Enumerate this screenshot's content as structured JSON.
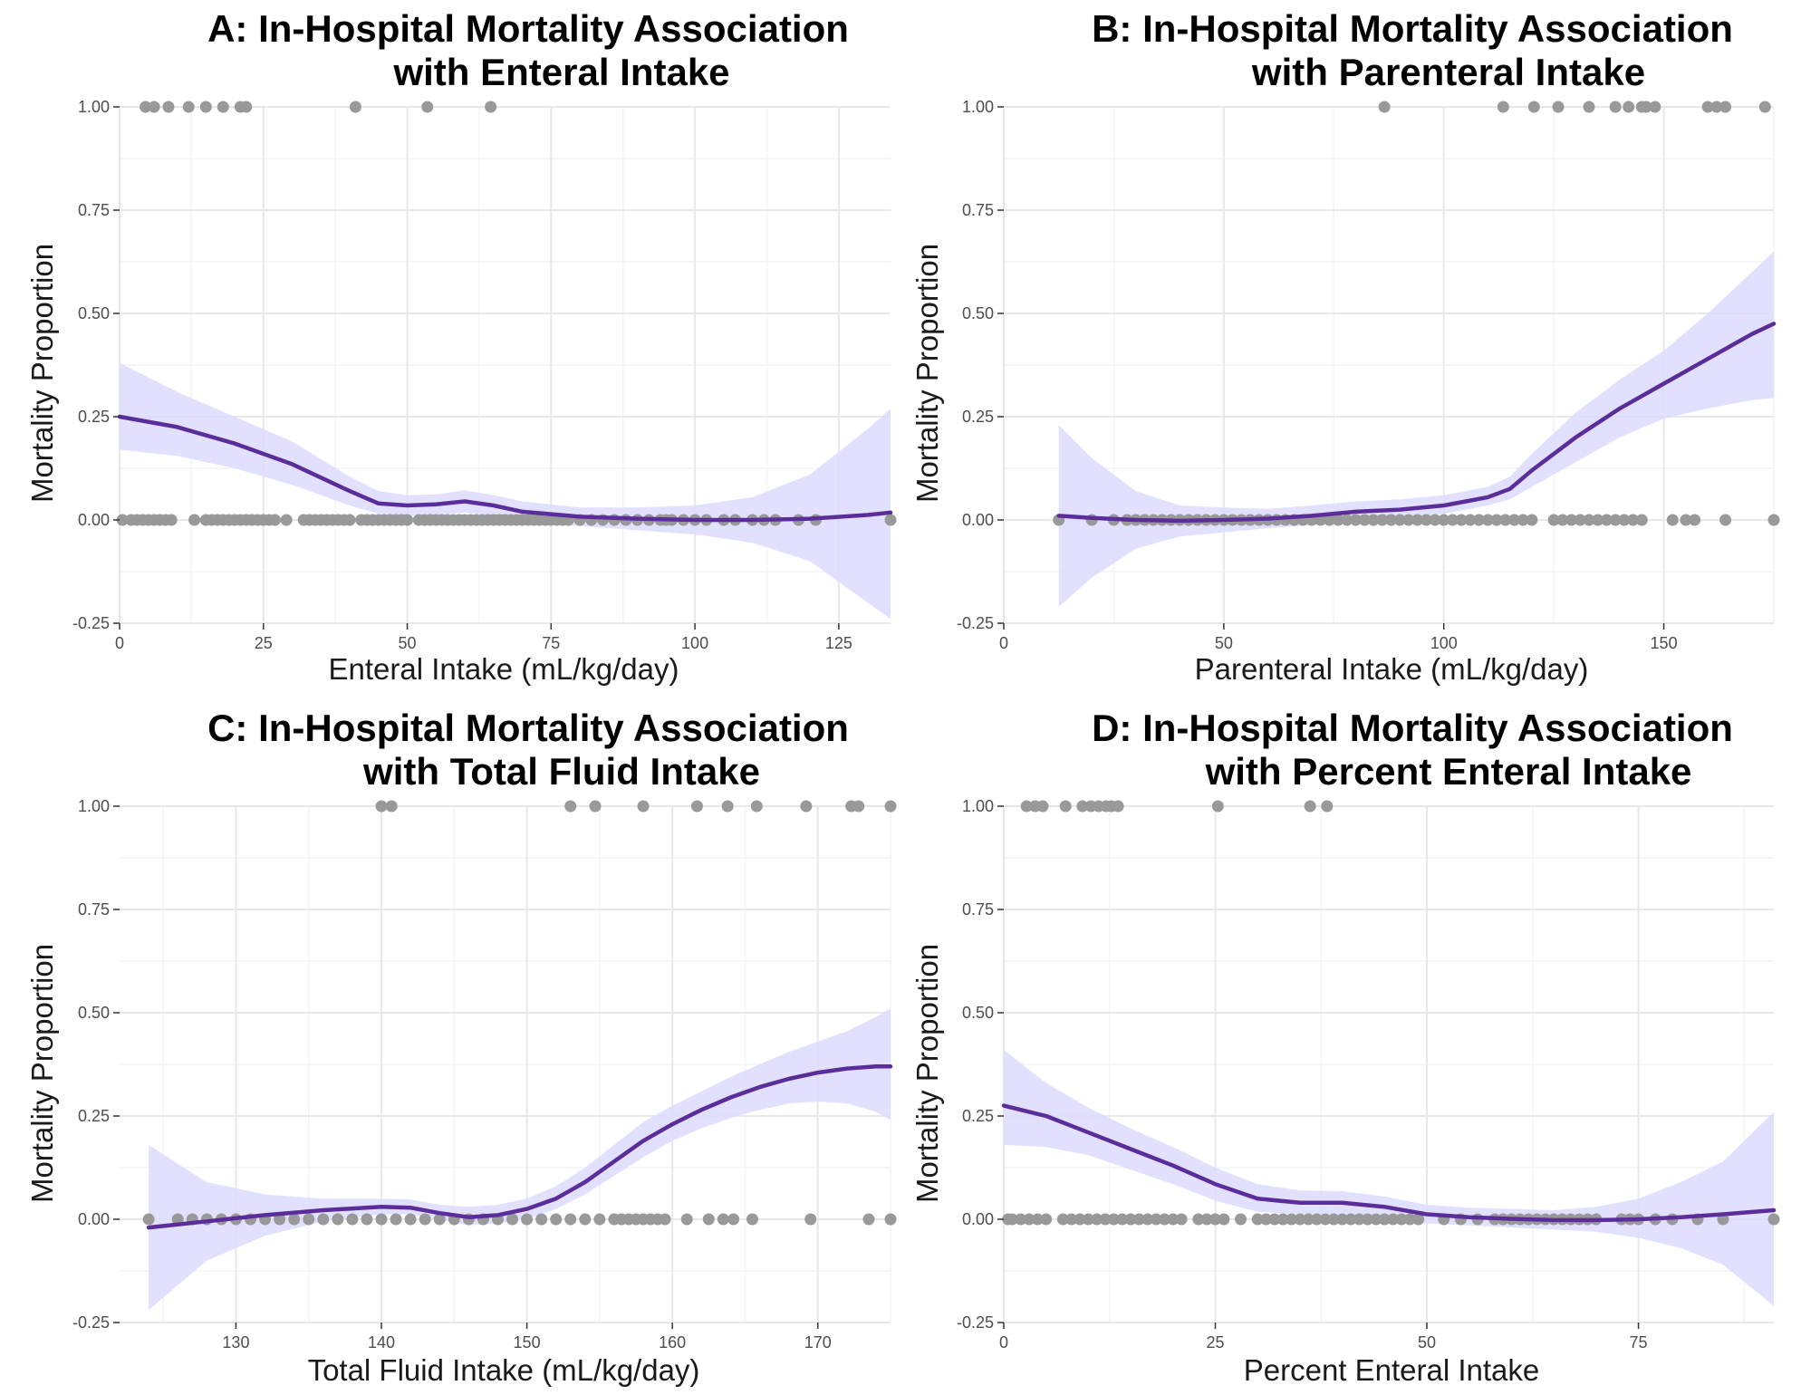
{
  "figure": {
    "colors": {
      "point": "#999999",
      "line": "#5b2d9a",
      "band": "#dcdcff",
      "grid_major": "#e8e8e8",
      "grid_minor": "#f4f4f4",
      "axis": "#333333"
    }
  },
  "chart_data": [
    {
      "type": "scatter",
      "title_lines": [
        "A: In-Hospital Mortality Association",
        "with Enteral Intake"
      ],
      "xlabel": "Enteral Intake (mL/kg/day)",
      "ylabel": "Mortality Proportion",
      "xlim": [
        0,
        134
      ],
      "ylim": [
        -0.25,
        1.0
      ],
      "x_ticks": [
        "0",
        "25",
        "50",
        "75",
        "100",
        "125"
      ],
      "x_tick_values": [
        0,
        25,
        50,
        75,
        100,
        125
      ],
      "y_ticks": [
        "-0.25",
        "0.00",
        "0.25",
        "0.50",
        "0.75",
        "1.00"
      ],
      "y_tick_values": [
        -0.25,
        0,
        0.25,
        0.5,
        0.75,
        1.0
      ],
      "grid": true,
      "points_y1": [
        4.5,
        6,
        8.5,
        12,
        15,
        18,
        21,
        22,
        41,
        53.5,
        64.5
      ],
      "points_y0": [
        0.5,
        2,
        3,
        4,
        5,
        6,
        7,
        8,
        9,
        13,
        15,
        16,
        17,
        18,
        19,
        20,
        21,
        22,
        23,
        24,
        25,
        26,
        27,
        29,
        32,
        33,
        34,
        35,
        36,
        37,
        38,
        39,
        40,
        42,
        43,
        44,
        45,
        46,
        47,
        48,
        49,
        50,
        52,
        53,
        54,
        55,
        56,
        57,
        58,
        59,
        60,
        61,
        62,
        63,
        64,
        65,
        66,
        67,
        68,
        69,
        70,
        71,
        72,
        73,
        74,
        75,
        76,
        77,
        78,
        80,
        82,
        84,
        86,
        88,
        90,
        92,
        94,
        95,
        96,
        98,
        100,
        102,
        105,
        107,
        110,
        112,
        114,
        118,
        121,
        134
      ],
      "smooth": {
        "x": [
          0,
          10,
          20,
          30,
          40,
          45,
          50,
          55,
          60,
          65,
          70,
          80,
          90,
          100,
          110,
          120,
          130,
          134
        ],
        "y": [
          0.25,
          0.225,
          0.185,
          0.135,
          0.07,
          0.04,
          0.035,
          0.038,
          0.045,
          0.035,
          0.02,
          0.008,
          0.003,
          0.0,
          0.0,
          0.003,
          0.012,
          0.018
        ],
        "lower": [
          0.17,
          0.155,
          0.125,
          0.085,
          0.035,
          0.015,
          0.01,
          0.012,
          0.018,
          0.01,
          0.0,
          -0.015,
          -0.025,
          -0.035,
          -0.055,
          -0.1,
          -0.2,
          -0.24
        ],
        "upper": [
          0.38,
          0.31,
          0.25,
          0.19,
          0.105,
          0.07,
          0.06,
          0.062,
          0.072,
          0.06,
          0.045,
          0.03,
          0.03,
          0.035,
          0.055,
          0.11,
          0.22,
          0.27
        ]
      }
    },
    {
      "type": "scatter",
      "title_lines": [
        "B: In-Hospital Mortality Association",
        "with Parenteral Intake"
      ],
      "xlabel": "Parenteral Intake (mL/kg/day)",
      "ylabel": "Mortality Proportion",
      "xlim": [
        0,
        175
      ],
      "ylim": [
        -0.25,
        1.0
      ],
      "x_ticks": [
        "0",
        "50",
        "100",
        "150"
      ],
      "x_tick_values": [
        0,
        50,
        100,
        150
      ],
      "y_ticks": [
        "-0.25",
        "0.00",
        "0.25",
        "0.50",
        "0.75",
        "1.00"
      ],
      "y_tick_values": [
        -0.25,
        0,
        0.25,
        0.5,
        0.75,
        1.0
      ],
      "grid": true,
      "points_y1": [
        86.5,
        113.5,
        120.5,
        126,
        133,
        139,
        142,
        145,
        146,
        148,
        160,
        162,
        164,
        173
      ],
      "points_y0": [
        12.5,
        20,
        25,
        28,
        30,
        32,
        34,
        36,
        38,
        40,
        42,
        44,
        46,
        48,
        50,
        52,
        54,
        56,
        58,
        60,
        62,
        64,
        66,
        68,
        70,
        72,
        74,
        76,
        78,
        80,
        82,
        84,
        86,
        88,
        90,
        92,
        94,
        96,
        98,
        100,
        102,
        104,
        106,
        108,
        110,
        112,
        114,
        116,
        118,
        120,
        125,
        127,
        129,
        131,
        133,
        135,
        137,
        139,
        141,
        143,
        145,
        152,
        155,
        157,
        164,
        175
      ],
      "smooth": {
        "x": [
          12.5,
          20,
          30,
          40,
          50,
          60,
          70,
          80,
          90,
          100,
          105,
          110,
          115,
          120,
          130,
          140,
          150,
          160,
          170,
          175
        ],
        "y": [
          0.01,
          0.005,
          0.0,
          -0.002,
          0.0,
          0.003,
          0.01,
          0.02,
          0.025,
          0.035,
          0.045,
          0.055,
          0.075,
          0.12,
          0.2,
          0.27,
          0.33,
          0.39,
          0.45,
          0.475
        ],
        "lower": [
          -0.21,
          -0.14,
          -0.07,
          -0.04,
          -0.03,
          -0.02,
          -0.012,
          0.0,
          0.005,
          0.015,
          0.025,
          0.035,
          0.05,
          0.08,
          0.14,
          0.2,
          0.245,
          0.27,
          0.29,
          0.295
        ],
        "upper": [
          0.23,
          0.15,
          0.07,
          0.035,
          0.03,
          0.027,
          0.035,
          0.045,
          0.05,
          0.06,
          0.07,
          0.08,
          0.105,
          0.16,
          0.26,
          0.34,
          0.41,
          0.5,
          0.6,
          0.65
        ]
      }
    },
    {
      "type": "scatter",
      "title_lines": [
        "C: In-Hospital Mortality Association",
        "with Total Fluid Intake"
      ],
      "xlabel": "Total Fluid Intake (mL/kg/day)",
      "ylabel": "Mortality Proportion",
      "xlim": [
        122,
        175
      ],
      "ylim": [
        -0.25,
        1.0
      ],
      "x_ticks": [
        "130",
        "140",
        "150",
        "160",
        "170"
      ],
      "x_tick_values": [
        130,
        140,
        150,
        160,
        170
      ],
      "y_ticks": [
        "-0.25",
        "0.00",
        "0.25",
        "0.50",
        "0.75",
        "1.00"
      ],
      "y_tick_values": [
        -0.25,
        0,
        0.25,
        0.5,
        0.75,
        1.0
      ],
      "grid": true,
      "points_y1": [
        140,
        140.7,
        153,
        154.7,
        158,
        161.7,
        163.8,
        165.8,
        169.2,
        172.3,
        172.8,
        175
      ],
      "points_y0": [
        124,
        126,
        127,
        128,
        129,
        130,
        131,
        132,
        133,
        134,
        135,
        136,
        137,
        138,
        139,
        140,
        141,
        142,
        143,
        144,
        145,
        146,
        147,
        148,
        149,
        150,
        151,
        152,
        153,
        154,
        155,
        156,
        156.5,
        157,
        157.5,
        158,
        158.5,
        159,
        159.5,
        161,
        162.5,
        163.5,
        164.2,
        165.5,
        169.5,
        173.5,
        175
      ],
      "smooth": {
        "x": [
          124,
          128,
          132,
          136,
          140,
          142,
          144,
          146,
          148,
          150,
          152,
          154,
          156,
          158,
          160,
          162,
          164,
          166,
          168,
          170,
          172,
          174,
          175
        ],
        "y": [
          -0.02,
          -0.005,
          0.01,
          0.022,
          0.03,
          0.028,
          0.015,
          0.005,
          0.01,
          0.025,
          0.05,
          0.09,
          0.14,
          0.19,
          0.23,
          0.265,
          0.295,
          0.32,
          0.34,
          0.355,
          0.365,
          0.37,
          0.37
        ],
        "lower": [
          -0.22,
          -0.1,
          -0.04,
          -0.005,
          0.012,
          0.012,
          0.0,
          -0.015,
          -0.01,
          0.0,
          0.025,
          0.06,
          0.105,
          0.15,
          0.19,
          0.22,
          0.245,
          0.265,
          0.28,
          0.285,
          0.28,
          0.26,
          0.24
        ],
        "upper": [
          0.18,
          0.09,
          0.06,
          0.05,
          0.05,
          0.048,
          0.035,
          0.03,
          0.035,
          0.05,
          0.08,
          0.125,
          0.18,
          0.235,
          0.275,
          0.31,
          0.345,
          0.375,
          0.405,
          0.43,
          0.455,
          0.49,
          0.51
        ]
      }
    },
    {
      "type": "scatter",
      "title_lines": [
        "D: In-Hospital Mortality Association",
        "with Percent Enteral Intake"
      ],
      "xlabel": "Percent Enteral Intake",
      "ylabel": "Mortality Proportion",
      "xlim": [
        0,
        91
      ],
      "ylim": [
        -0.25,
        1.0
      ],
      "x_ticks": [
        "0",
        "25",
        "50",
        "75"
      ],
      "x_tick_values": [
        0,
        25,
        50,
        75
      ],
      "y_ticks": [
        "-0.25",
        "0.00",
        "0.25",
        "0.50",
        "0.75",
        "1.00"
      ],
      "y_tick_values": [
        -0.25,
        0,
        0.25,
        0.5,
        0.75,
        1.0
      ],
      "grid": true,
      "points_y1": [
        2.7,
        3.7,
        4.6,
        7.3,
        9.3,
        10.3,
        11.2,
        12.1,
        12.7,
        13.5,
        25.3,
        36.2,
        38.2
      ],
      "points_y0": [
        0.5,
        1,
        2,
        3,
        4,
        5,
        7,
        8,
        9,
        10,
        11,
        12,
        13,
        14,
        15,
        16,
        17,
        18,
        19,
        20,
        21,
        23,
        24,
        25,
        26,
        28,
        30,
        31,
        32,
        33,
        34,
        35,
        36,
        37,
        38,
        39,
        40,
        41,
        42,
        43,
        44,
        45,
        46,
        47,
        48,
        49,
        52,
        54,
        56,
        58,
        59,
        60,
        61,
        62,
        63,
        64,
        65,
        66,
        67,
        68,
        69,
        70,
        73,
        74,
        75,
        77,
        79,
        82,
        85,
        91
      ],
      "smooth": {
        "x": [
          0,
          5,
          10,
          15,
          20,
          25,
          30,
          35,
          40,
          45,
          50,
          55,
          60,
          65,
          70,
          75,
          80,
          85,
          91
        ],
        "y": [
          0.275,
          0.25,
          0.21,
          0.17,
          0.13,
          0.085,
          0.05,
          0.04,
          0.04,
          0.03,
          0.012,
          0.005,
          0.001,
          -0.002,
          -0.002,
          0.0,
          0.005,
          0.012,
          0.022
        ],
        "lower": [
          0.18,
          0.175,
          0.155,
          0.12,
          0.085,
          0.045,
          0.018,
          0.012,
          0.012,
          0.005,
          -0.01,
          -0.015,
          -0.02,
          -0.025,
          -0.03,
          -0.045,
          -0.07,
          -0.11,
          -0.21
        ],
        "upper": [
          0.41,
          0.33,
          0.27,
          0.22,
          0.175,
          0.125,
          0.085,
          0.07,
          0.068,
          0.055,
          0.035,
          0.028,
          0.025,
          0.022,
          0.03,
          0.05,
          0.09,
          0.14,
          0.26
        ]
      }
    }
  ]
}
